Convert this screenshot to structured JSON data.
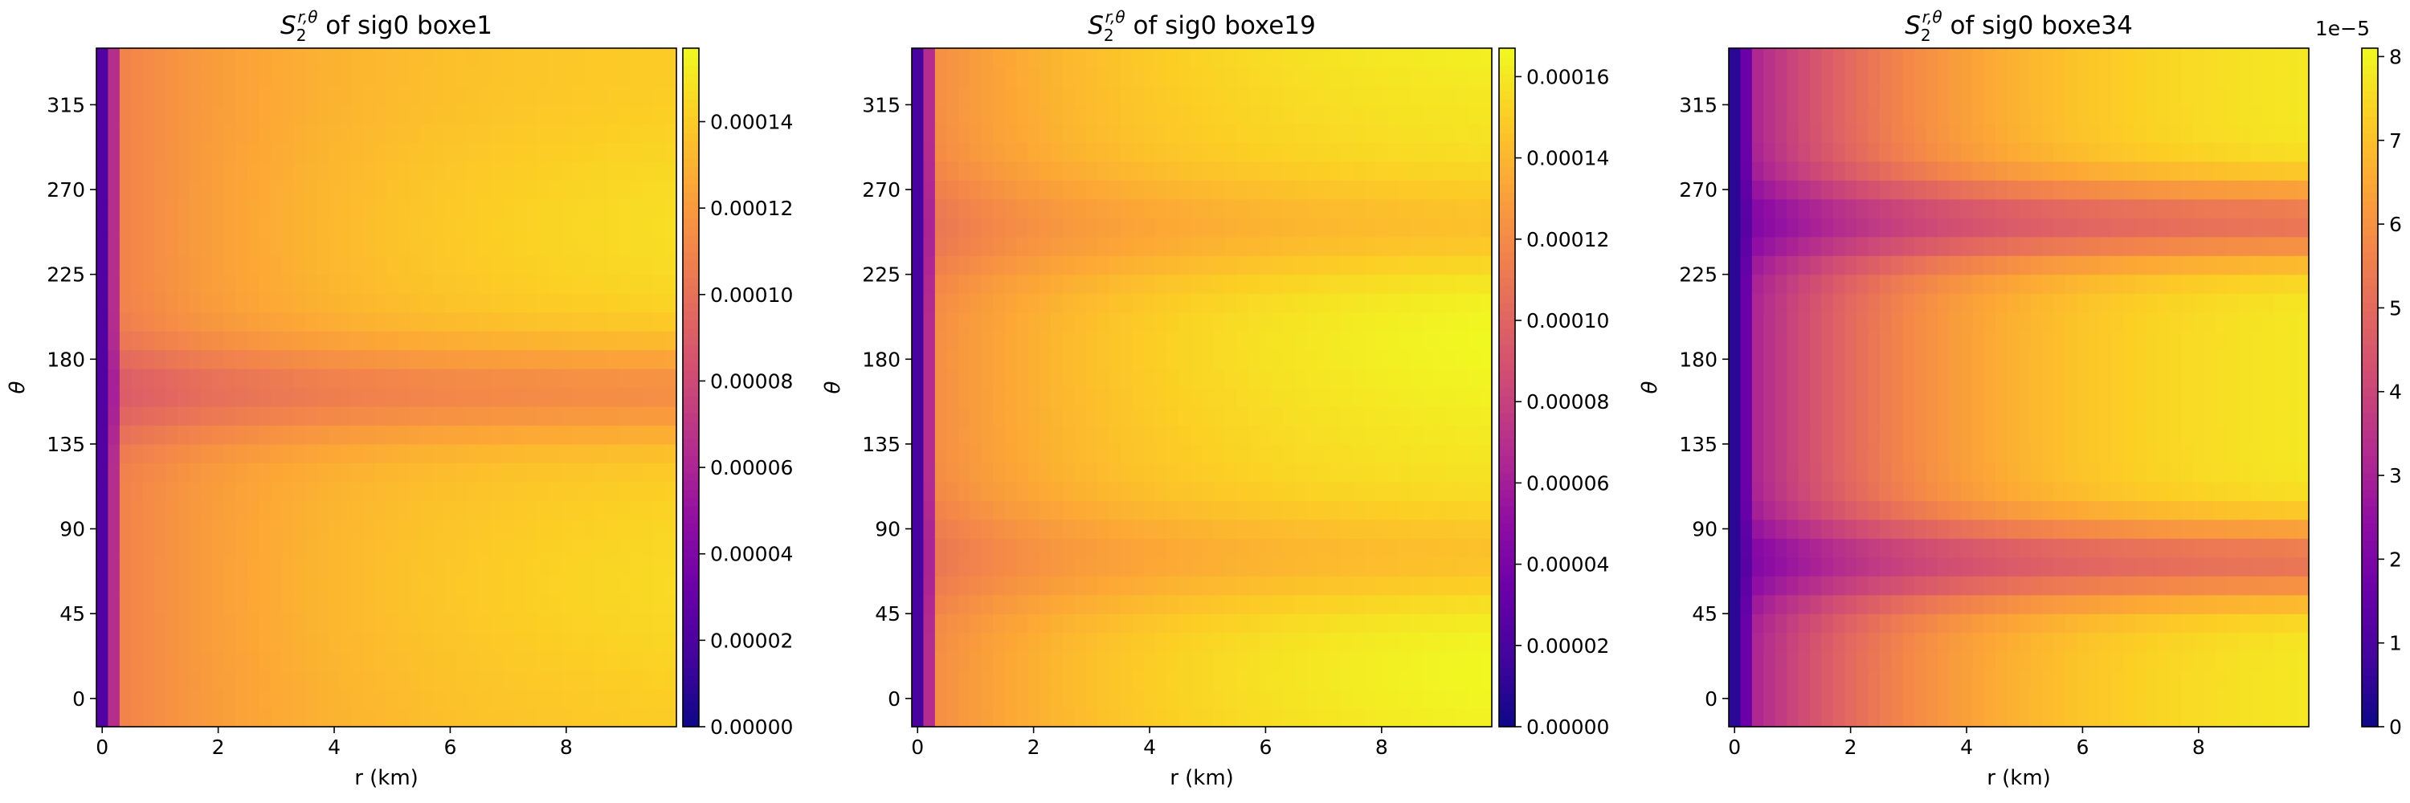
{
  "chart_data": [
    {
      "type": "heatmap",
      "title_math": "S",
      "title_sub": "2",
      "title_sup": "r,θ",
      "title_rest": " of sig0 boxe1",
      "xlabel": "r (km)",
      "ylabel": "θ",
      "xlim": [
        -0.1,
        9.9
      ],
      "ylim": [
        -15,
        345
      ],
      "x_ticks": [
        "0",
        "2",
        "4",
        "6",
        "8"
      ],
      "y_ticks": [
        "0",
        "45",
        "90",
        "135",
        "180",
        "225",
        "270",
        "315"
      ],
      "colormap": "plasma",
      "colorbar": {
        "vmin": 0,
        "vmax": 0.000157,
        "offset_label": "",
        "ticks": [
          "0.00000",
          "0.00002",
          "0.00004",
          "0.00006",
          "0.00008",
          "0.00010",
          "0.00012",
          "0.00014"
        ]
      },
      "field": {
        "base": 0.000106,
        "growth": 3.5e-05,
        "inner_floor": 0.00011,
        "dips": [
          {
            "theta": 163,
            "depth": 0.18,
            "width": 18
          }
        ],
        "bumps": [
          {
            "theta": 60,
            "amp": 0.05
          },
          {
            "theta": 250,
            "amp": 0.06
          }
        ]
      }
    },
    {
      "type": "heatmap",
      "title_math": "S",
      "title_sub": "2",
      "title_sup": "r,θ",
      "title_rest": " of sig0 boxe19",
      "xlabel": "r (km)",
      "ylabel": "θ",
      "xlim": [
        -0.1,
        9.9
      ],
      "ylim": [
        -15,
        345
      ],
      "x_ticks": [
        "0",
        "2",
        "4",
        "6",
        "8"
      ],
      "y_ticks": [
        "0",
        "45",
        "90",
        "135",
        "180",
        "225",
        "270",
        "315"
      ],
      "colormap": "plasma",
      "colorbar": {
        "vmin": 0,
        "vmax": 0.000167,
        "offset_label": "",
        "ticks": [
          "0.00000",
          "0.00002",
          "0.00004",
          "0.00006",
          "0.00008",
          "0.00010",
          "0.00012",
          "0.00014",
          "0.00016"
        ]
      },
      "field": {
        "base": 0.000118,
        "growth": 4.2e-05,
        "inner_floor": 0.0001,
        "dips": [
          {
            "theta": 75,
            "depth": 0.1,
            "width": 20
          },
          {
            "theta": 250,
            "depth": 0.1,
            "width": 20
          }
        ],
        "bumps": [
          {
            "theta": 20,
            "amp": 0.06
          },
          {
            "theta": 195,
            "amp": 0.06
          }
        ]
      }
    },
    {
      "type": "heatmap",
      "title_math": "S",
      "title_sub": "2",
      "title_sup": "r,θ",
      "title_rest": " of sig0 boxe34",
      "xlabel": "r (km)",
      "ylabel": "θ",
      "xlim": [
        -0.1,
        9.9
      ],
      "ylim": [
        -15,
        345
      ],
      "x_ticks": [
        "0",
        "2",
        "4",
        "6",
        "8"
      ],
      "y_ticks": [
        "0",
        "45",
        "90",
        "135",
        "180",
        "225",
        "270",
        "315"
      ],
      "colormap": "plasma",
      "colorbar": {
        "vmin": 0,
        "vmax": 8.1e-05,
        "offset_label": "1e−5",
        "ticks": [
          "0",
          "1",
          "2",
          "3",
          "4",
          "5",
          "6",
          "7",
          "8"
        ]
      },
      "field": {
        "base": 2.6e-05,
        "growth": 5.5e-05,
        "inner_floor": 2.4e-05,
        "dips": [
          {
            "theta": 73,
            "depth": 0.32,
            "width": 16
          },
          {
            "theta": 253,
            "depth": 0.32,
            "width": 16
          }
        ],
        "bumps": []
      }
    }
  ]
}
